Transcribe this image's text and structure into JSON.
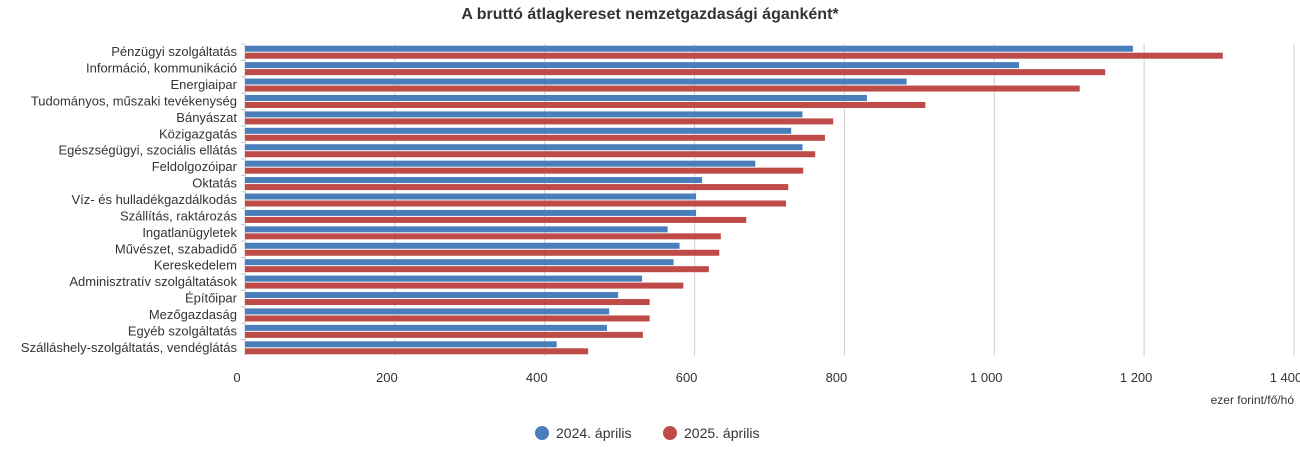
{
  "chart_data": {
    "type": "bar",
    "orientation": "horizontal",
    "title": "A bruttó átlagkereset nemzetgazdasági áganként*",
    "xlabel": "ezer forint/fő/hó",
    "ylabel": "",
    "xlim": [
      0,
      1400
    ],
    "ticks": [
      0,
      200,
      400,
      600,
      800,
      1000,
      1200,
      1400
    ],
    "tick_labels": [
      "0",
      "200",
      "400",
      "600",
      "800",
      "1 000",
      "1 200",
      "1 400"
    ],
    "grid": true,
    "legend_position": "bottom-center",
    "categories": [
      "Pénzügyi szolgáltatás",
      "Információ, kommunikáció",
      "Energiaipar",
      "Tudományos, műszaki tevékenység",
      "Bányászat",
      "Közigazgatás",
      "Egészségügyi, szociális ellátás",
      "Feldolgozóipar",
      "Oktatás",
      "Víz- és hulladékgazdálkodás",
      "Szállítás, raktározás",
      "Ingatlanügyletek",
      "Művészet, szabadidő",
      "Kereskedelem",
      "Adminisztratív szolgáltatások",
      "Építőipar",
      "Mezőgazdaság",
      "Egyéb szolgáltatás",
      "Szálláshely-szolgáltatás, vendéglátás"
    ],
    "series": [
      {
        "name": "2024. április",
        "color": "#4a7ebb",
        "values": [
          1185,
          1033,
          883,
          830,
          744,
          729,
          744,
          681,
          610,
          602,
          602,
          564,
          580,
          572,
          530,
          498,
          486,
          483,
          416
        ]
      },
      {
        "name": "2025. április",
        "color": "#be4b48",
        "values": [
          1305,
          1148,
          1114,
          908,
          785,
          774,
          761,
          745,
          725,
          722,
          669,
          635,
          633,
          619,
          585,
          540,
          540,
          531,
          458
        ]
      }
    ]
  }
}
